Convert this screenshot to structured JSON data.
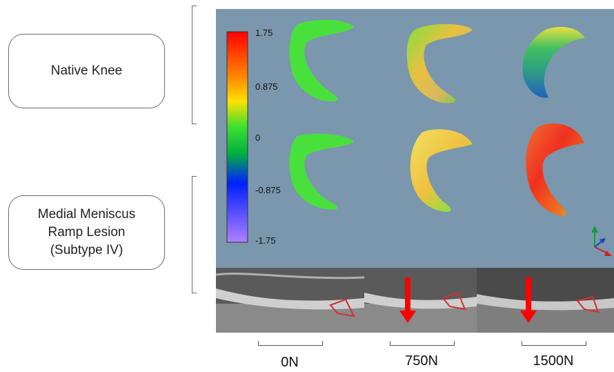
{
  "groups": [
    {
      "lines": [
        "Native Knee"
      ]
    },
    {
      "lines": [
        "Medial Meniscus",
        "Ramp Lesion",
        "(Subtype IV)"
      ]
    }
  ],
  "colorbar": {
    "ticks": [
      "1.75",
      "0.875",
      "0",
      "-0.875",
      "-1.75"
    ],
    "colors": [
      "#ff0000",
      "#ffa000",
      "#ffff00",
      "#00e000",
      "#00aa00",
      "#0000ff",
      "#a070ff"
    ]
  },
  "loads": [
    "0N",
    "750N",
    "1500N"
  ],
  "colors": {
    "panel_background": "#7a97ad",
    "arrow": "#ff0000",
    "lesion_outline": "#d23030"
  }
}
